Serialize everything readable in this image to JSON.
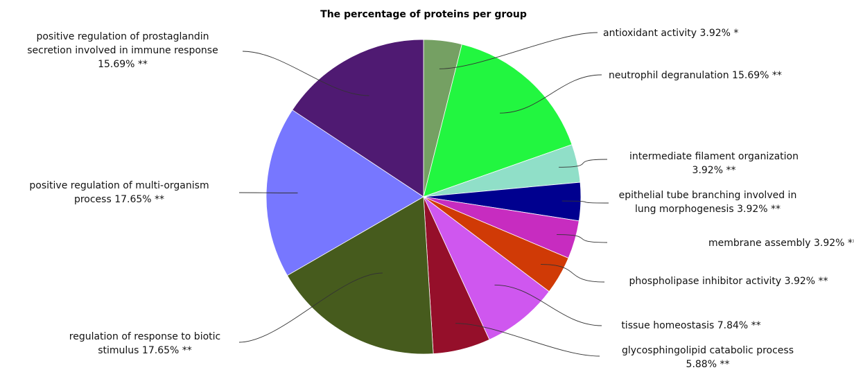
{
  "chart_data": {
    "type": "pie",
    "title": "The percentage of proteins per group",
    "slices": [
      {
        "name": "antioxidant activity",
        "value": 3.92,
        "label_lines": [
          "antioxidant activity 3.92% *"
        ],
        "color": "#75a063"
      },
      {
        "name": "neutrophil degranulation",
        "value": 15.69,
        "label_lines": [
          "neutrophil degranulation 15.69% **"
        ],
        "color": "#22f640"
      },
      {
        "name": "intermediate filament organization",
        "value": 3.92,
        "label_lines": [
          "intermediate filament organization",
          "3.92% **"
        ],
        "color": "#90dfc8"
      },
      {
        "name": "epithelial tube branching involved in lung morphogenesis",
        "value": 3.92,
        "label_lines": [
          "epithelial tube branching involved in",
          "lung morphogenesis 3.92% **"
        ],
        "color": "#00008f"
      },
      {
        "name": "membrane assembly",
        "value": 3.92,
        "label_lines": [
          "membrane assembly 3.92% **"
        ],
        "color": "#c72cc0"
      },
      {
        "name": "phospholipase inhibitor activity",
        "value": 3.92,
        "label_lines": [
          "phospholipase inhibitor activity 3.92% **"
        ],
        "color": "#d03a06"
      },
      {
        "name": "tissue homeostasis",
        "value": 7.84,
        "label_lines": [
          "tissue homeostasis 7.84% **"
        ],
        "color": "#cf57ef"
      },
      {
        "name": "glycosphingolipid catabolic process",
        "value": 5.88,
        "label_lines": [
          "glycosphingolipid catabolic process",
          "5.88% **"
        ],
        "color": "#950f2a"
      },
      {
        "name": "regulation of response to biotic stimulus",
        "value": 17.65,
        "label_lines": [
          "regulation of response to biotic",
          "stimulus 17.65% **"
        ],
        "color": "#465b1d"
      },
      {
        "name": "positive regulation of multi-organism process",
        "value": 17.65,
        "label_lines": [
          "positive regulation of multi-organism",
          "process 17.65% **"
        ],
        "color": "#7777ff"
      },
      {
        "name": "positive regulation of prostaglandin secretion involved in immune response",
        "value": 15.69,
        "label_lines": [
          "positive regulation of prostaglandin",
          "secretion involved in immune response",
          "15.69% **"
        ],
        "color": "#4f1a72"
      }
    ]
  }
}
